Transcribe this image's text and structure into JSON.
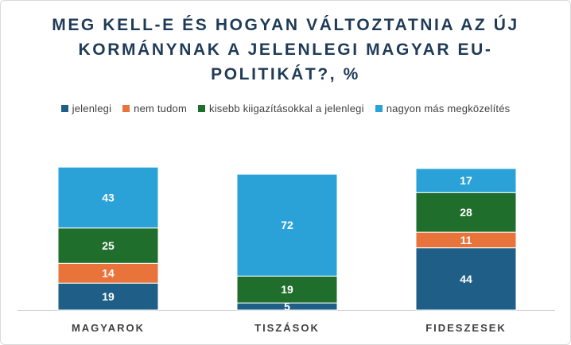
{
  "title_lines": [
    "MEG KELL-E ÉS HOGYAN VÁLTOZTATNIA AZ ÚJ",
    "KORMÁNYNAK A JELENLEGI MAGYAR EU-",
    "POLITIKÁT?, %"
  ],
  "legend": [
    {
      "label": "jelenlegi",
      "color": "#1f5f87"
    },
    {
      "label": "nem tudom",
      "color": "#e8743b"
    },
    {
      "label": "kisebb kiigazításokkal a jelenlegi",
      "color": "#1f6e2c"
    },
    {
      "label": "nagyon más megközelítés",
      "color": "#2aa2d8"
    }
  ],
  "chart_data": {
    "type": "bar",
    "stacked": true,
    "title": "MEG KELL-E ÉS HOGYAN VÁLTOZTATNIA AZ ÚJ KORMÁNYNAK A JELENLEGI MAGYAR EU-POLITIKÁT?, %",
    "categories": [
      "MAGYAROK",
      "TISZÁSOK",
      "FIDESZESEK"
    ],
    "series": [
      {
        "name": "jelenlegi",
        "color": "#1f5f87",
        "values": [
          19,
          5,
          44
        ]
      },
      {
        "name": "nem tudom",
        "color": "#e8743b",
        "values": [
          14,
          0,
          11
        ]
      },
      {
        "name": "kisebb kiigazításokkal a jelenlegi",
        "color": "#1f6e2c",
        "values": [
          25,
          19,
          28
        ]
      },
      {
        "name": "nagyon más megközelítés",
        "color": "#2aa2d8",
        "values": [
          43,
          72,
          17
        ]
      }
    ],
    "ylim": [
      0,
      100
    ],
    "grid": false,
    "legend_position": "top"
  }
}
